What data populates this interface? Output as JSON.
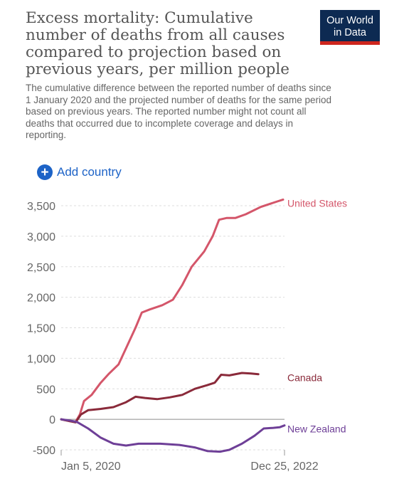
{
  "header": {
    "title": "Excess mortality: Cumulative\nnumber of deaths from all causes\ncompared to projection based on\nprevious years, per million people",
    "subtitle": "The cumulative difference between the reported number of deaths since\n1 January 2020 and the projected number of deaths for the same period\nbased on previous years. The reported number might not count all\ndeaths that occurred due to incomplete coverage and delays in\nreporting.",
    "logo": "Our World\nin Data"
  },
  "controls": {
    "add_country_label": "Add country",
    "add_icon": "plus-circle-icon"
  },
  "colors": {
    "logo_bg": "#0d2a52",
    "logo_accent": "#ce261e",
    "link": "#1d63c7"
  },
  "chart_data": {
    "type": "line",
    "ylim": [
      -500,
      3500
    ],
    "y_ticks": [
      -500,
      0,
      500,
      1000,
      1500,
      2000,
      2500,
      3000,
      3500
    ],
    "y_tick_labels": [
      "-500",
      "0",
      "500",
      "1,000",
      "1,500",
      "2,000",
      "2,500",
      "3,000",
      "3,500"
    ],
    "x_range": [
      "2020-01-05",
      "2022-12-25"
    ],
    "x_tick_labels": [
      "Jan 5, 2020",
      "Dec 25, 2022"
    ],
    "grid": true,
    "series": [
      {
        "name": "United States",
        "color": "#d4566a",
        "points": [
          [
            "2020-01-05",
            0
          ],
          [
            "2020-02-15",
            -30
          ],
          [
            "2020-03-15",
            -40
          ],
          [
            "2020-04-05",
            80
          ],
          [
            "2020-04-25",
            300
          ],
          [
            "2020-06-01",
            400
          ],
          [
            "2020-07-15",
            600
          ],
          [
            "2020-08-25",
            750
          ],
          [
            "2020-10-10",
            900
          ],
          [
            "2020-11-20",
            1200
          ],
          [
            "2020-12-31",
            1500
          ],
          [
            "2021-01-31",
            1750
          ],
          [
            "2021-03-10",
            1800
          ],
          [
            "2021-05-10",
            1870
          ],
          [
            "2021-07-01",
            1960
          ],
          [
            "2021-08-15",
            2200
          ],
          [
            "2021-09-30",
            2500
          ],
          [
            "2021-11-30",
            2750
          ],
          [
            "2022-01-10",
            3000
          ],
          [
            "2022-02-10",
            3270
          ],
          [
            "2022-03-20",
            3300
          ],
          [
            "2022-05-01",
            3300
          ],
          [
            "2022-06-20",
            3360
          ],
          [
            "2022-09-01",
            3480
          ],
          [
            "2022-11-20",
            3570
          ],
          [
            "2022-12-18",
            3600
          ]
        ]
      },
      {
        "name": "Canada",
        "color": "#8a2a3a",
        "points": [
          [
            "2020-01-05",
            0
          ],
          [
            "2020-02-15",
            -30
          ],
          [
            "2020-03-15",
            -50
          ],
          [
            "2020-04-10",
            80
          ],
          [
            "2020-05-15",
            150
          ],
          [
            "2020-07-15",
            170
          ],
          [
            "2020-09-15",
            200
          ],
          [
            "2020-11-15",
            280
          ],
          [
            "2020-12-31",
            370
          ],
          [
            "2021-02-15",
            350
          ],
          [
            "2021-04-15",
            330
          ],
          [
            "2021-06-15",
            360
          ],
          [
            "2021-08-15",
            400
          ],
          [
            "2021-10-15",
            500
          ],
          [
            "2021-12-15",
            560
          ],
          [
            "2022-01-20",
            600
          ],
          [
            "2022-02-20",
            730
          ],
          [
            "2022-04-01",
            720
          ],
          [
            "2022-06-01",
            760
          ],
          [
            "2022-07-15",
            750
          ],
          [
            "2022-08-20",
            740
          ]
        ]
      },
      {
        "name": "New Zealand",
        "color": "#6e3f97",
        "points": [
          [
            "2020-01-05",
            0
          ],
          [
            "2020-02-15",
            -20
          ],
          [
            "2020-03-20",
            -40
          ],
          [
            "2020-05-15",
            -150
          ],
          [
            "2020-07-15",
            -300
          ],
          [
            "2020-09-15",
            -400
          ],
          [
            "2020-11-15",
            -430
          ],
          [
            "2021-01-15",
            -400
          ],
          [
            "2021-05-01",
            -400
          ],
          [
            "2021-08-01",
            -420
          ],
          [
            "2021-10-15",
            -460
          ],
          [
            "2021-12-15",
            -520
          ],
          [
            "2022-02-15",
            -530
          ],
          [
            "2022-04-01",
            -500
          ],
          [
            "2022-06-01",
            -400
          ],
          [
            "2022-08-01",
            -270
          ],
          [
            "2022-09-15",
            -150
          ],
          [
            "2022-11-01",
            -140
          ],
          [
            "2022-12-01",
            -130
          ],
          [
            "2022-12-25",
            -100
          ]
        ]
      }
    ]
  }
}
